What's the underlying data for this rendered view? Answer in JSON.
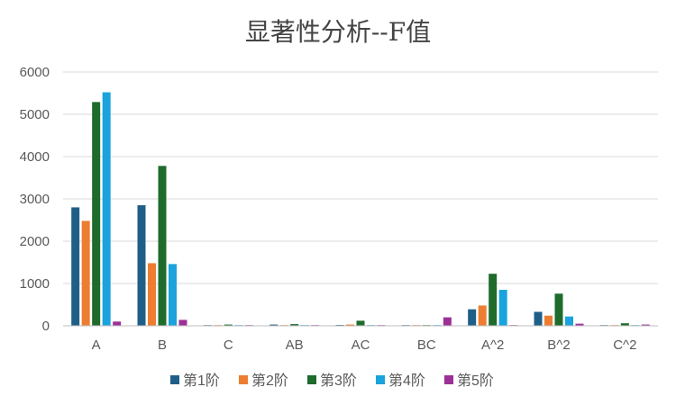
{
  "chart_data": {
    "type": "bar",
    "title": "显著性分析--F值",
    "categories": [
      "A",
      "B",
      "C",
      "AB",
      "AC",
      "BC",
      "A^2",
      "B^2",
      "C^2"
    ],
    "series": [
      {
        "name": "第1阶",
        "color": "#1f5f87",
        "values": [
          2800,
          2850,
          10,
          30,
          20,
          10,
          390,
          330,
          10
        ]
      },
      {
        "name": "第2阶",
        "color": "#ed7d31",
        "values": [
          2480,
          1480,
          10,
          10,
          30,
          5,
          480,
          240,
          10
        ]
      },
      {
        "name": "第3阶",
        "color": "#1e6b2c",
        "values": [
          5290,
          3780,
          30,
          40,
          120,
          10,
          1230,
          760,
          60
        ]
      },
      {
        "name": "第4阶",
        "color": "#1aa3dc",
        "values": [
          5520,
          1460,
          10,
          10,
          10,
          10,
          850,
          220,
          10
        ]
      },
      {
        "name": "第5阶",
        "color": "#9b3097",
        "values": [
          100,
          140,
          5,
          5,
          5,
          200,
          5,
          50,
          30
        ]
      }
    ],
    "ylim": [
      0,
      6000
    ],
    "yticks": [
      0,
      1000,
      2000,
      3000,
      4000,
      5000,
      6000
    ],
    "grid": true,
    "legend_position": "bottom"
  }
}
